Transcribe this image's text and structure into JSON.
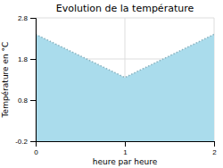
{
  "chart_data": {
    "type": "area",
    "title": "Evolution de la température",
    "xlabel": "heure par heure",
    "ylabel": "Température en °C",
    "x": [
      0,
      1,
      2
    ],
    "values": [
      2.4,
      1.35,
      2.4
    ],
    "xlim": [
      0,
      2
    ],
    "ylim": [
      -0.2,
      2.8
    ],
    "xticks": [
      0,
      1,
      2
    ],
    "yticks": [
      -0.2,
      0.8,
      1.8,
      2.8
    ],
    "color": "#aadcec",
    "line_style": "dotted",
    "grid": true
  }
}
